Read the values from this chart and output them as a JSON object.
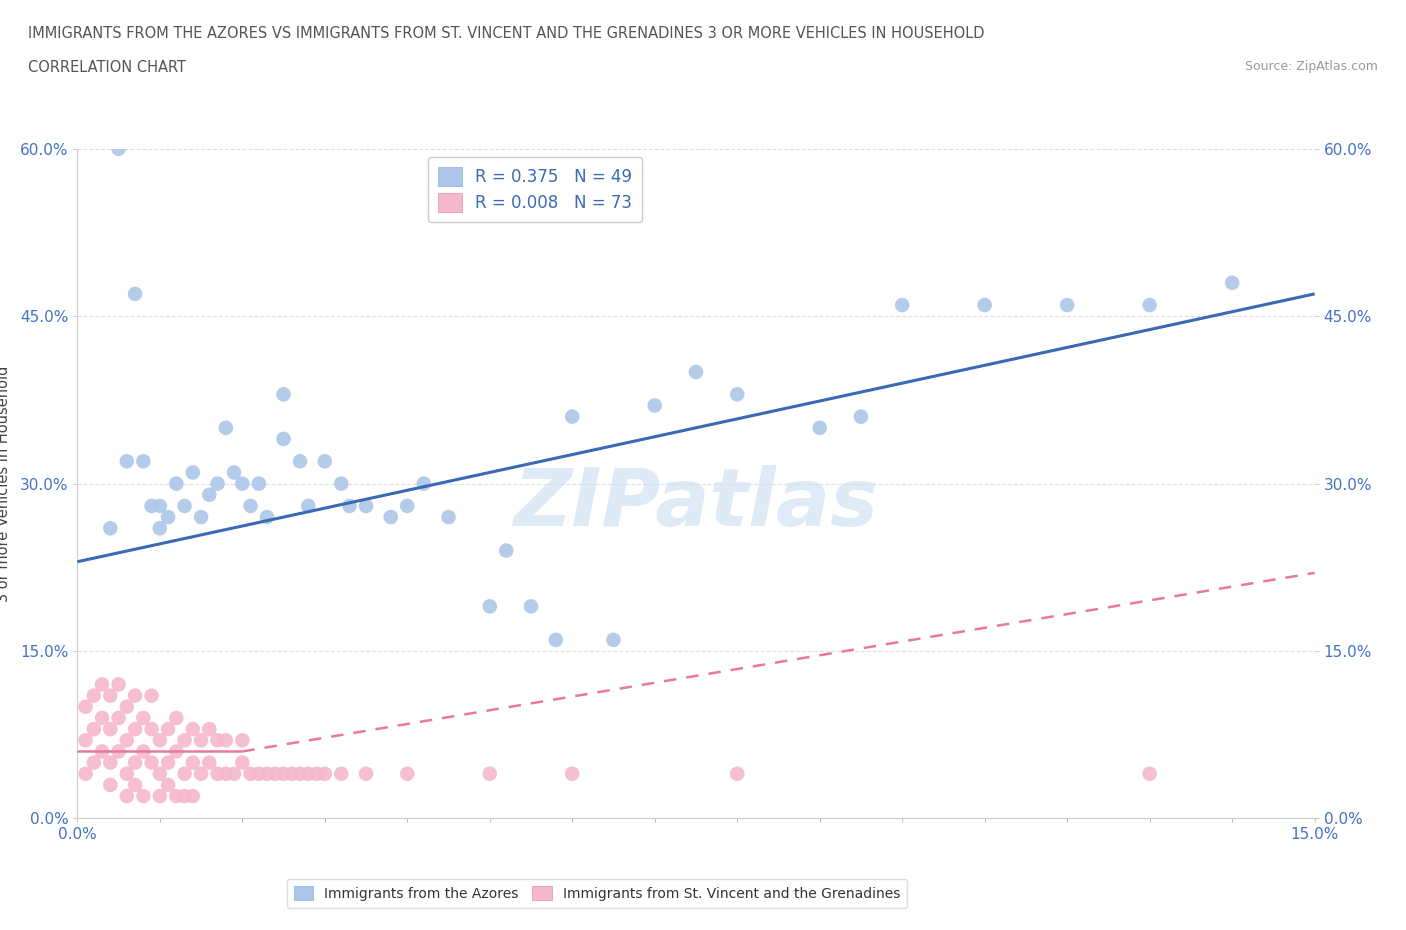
{
  "title_line1": "IMMIGRANTS FROM THE AZORES VS IMMIGRANTS FROM ST. VINCENT AND THE GRENADINES 3 OR MORE VEHICLES IN HOUSEHOLD",
  "title_line2": "CORRELATION CHART",
  "source_text": "Source: ZipAtlas.com",
  "ylabel": "3 or more Vehicles in Household",
  "xlim": [
    0.0,
    0.15
  ],
  "ylim": [
    0.0,
    0.6
  ],
  "xticks": [
    0.0,
    0.05,
    0.1,
    0.15
  ],
  "yticks": [
    0.0,
    0.15,
    0.3,
    0.45,
    0.6
  ],
  "xtick_labels": [
    "0.0%",
    "",
    "",
    "15.0%"
  ],
  "ytick_labels": [
    "0.0%",
    "15.0%",
    "30.0%",
    "45.0%",
    "60.0%"
  ],
  "watermark": "ZIPatlas",
  "azores_color": "#adc6e8",
  "stvincent_color": "#f5b8cc",
  "azores_line_color": "#3b6ab5",
  "stvincent_line_color": "#e8799a",
  "azores_R": 0.375,
  "azores_N": 49,
  "stvincent_R": 0.008,
  "stvincent_N": 73,
  "azores_x": [
    0.004,
    0.005,
    0.007,
    0.009,
    0.01,
    0.011,
    0.012,
    0.013,
    0.014,
    0.015,
    0.016,
    0.017,
    0.019,
    0.021,
    0.022,
    0.023,
    0.025,
    0.027,
    0.028,
    0.03,
    0.032,
    0.033,
    0.038,
    0.04,
    0.042,
    0.05,
    0.052,
    0.055,
    0.058,
    0.06,
    0.065,
    0.07,
    0.075,
    0.08,
    0.09,
    0.095,
    0.1,
    0.11,
    0.12,
    0.13,
    0.14,
    0.025,
    0.018,
    0.008,
    0.006,
    0.01,
    0.02,
    0.035,
    0.045
  ],
  "azores_y": [
    0.26,
    0.6,
    0.47,
    0.28,
    0.26,
    0.27,
    0.3,
    0.28,
    0.31,
    0.27,
    0.29,
    0.3,
    0.31,
    0.28,
    0.3,
    0.27,
    0.34,
    0.32,
    0.28,
    0.32,
    0.3,
    0.28,
    0.27,
    0.28,
    0.3,
    0.19,
    0.24,
    0.19,
    0.16,
    0.36,
    0.16,
    0.37,
    0.4,
    0.38,
    0.35,
    0.36,
    0.46,
    0.46,
    0.46,
    0.46,
    0.48,
    0.38,
    0.35,
    0.32,
    0.32,
    0.28,
    0.3,
    0.28,
    0.27
  ],
  "stvincent_x": [
    0.001,
    0.001,
    0.001,
    0.002,
    0.002,
    0.002,
    0.003,
    0.003,
    0.003,
    0.004,
    0.004,
    0.004,
    0.004,
    0.005,
    0.005,
    0.005,
    0.006,
    0.006,
    0.006,
    0.006,
    0.007,
    0.007,
    0.007,
    0.007,
    0.008,
    0.008,
    0.008,
    0.009,
    0.009,
    0.009,
    0.01,
    0.01,
    0.01,
    0.011,
    0.011,
    0.011,
    0.012,
    0.012,
    0.012,
    0.013,
    0.013,
    0.013,
    0.014,
    0.014,
    0.014,
    0.015,
    0.015,
    0.016,
    0.016,
    0.017,
    0.017,
    0.018,
    0.018,
    0.019,
    0.02,
    0.02,
    0.021,
    0.022,
    0.023,
    0.024,
    0.025,
    0.026,
    0.027,
    0.028,
    0.029,
    0.03,
    0.032,
    0.035,
    0.04,
    0.05,
    0.06,
    0.08,
    0.13
  ],
  "stvincent_y": [
    0.04,
    0.07,
    0.1,
    0.05,
    0.08,
    0.11,
    0.06,
    0.09,
    0.12,
    0.05,
    0.08,
    0.11,
    0.03,
    0.06,
    0.09,
    0.12,
    0.04,
    0.07,
    0.1,
    0.02,
    0.05,
    0.08,
    0.11,
    0.03,
    0.06,
    0.09,
    0.02,
    0.05,
    0.08,
    0.11,
    0.04,
    0.07,
    0.02,
    0.05,
    0.08,
    0.03,
    0.06,
    0.09,
    0.02,
    0.04,
    0.07,
    0.02,
    0.05,
    0.08,
    0.02,
    0.04,
    0.07,
    0.05,
    0.08,
    0.04,
    0.07,
    0.04,
    0.07,
    0.04,
    0.05,
    0.07,
    0.04,
    0.04,
    0.04,
    0.04,
    0.04,
    0.04,
    0.04,
    0.04,
    0.04,
    0.04,
    0.04,
    0.04,
    0.04,
    0.04,
    0.04,
    0.04,
    0.04
  ],
  "azores_trend": [
    0.23,
    0.47
  ],
  "stvincent_trend_solid": [
    0.06,
    0.06
  ],
  "stvincent_trend_dashed": [
    0.06,
    0.22
  ],
  "background_color": "#ffffff",
  "grid_color": "#d8d8d8",
  "axis_label_color": "#4472c4",
  "title_color": "#666666"
}
